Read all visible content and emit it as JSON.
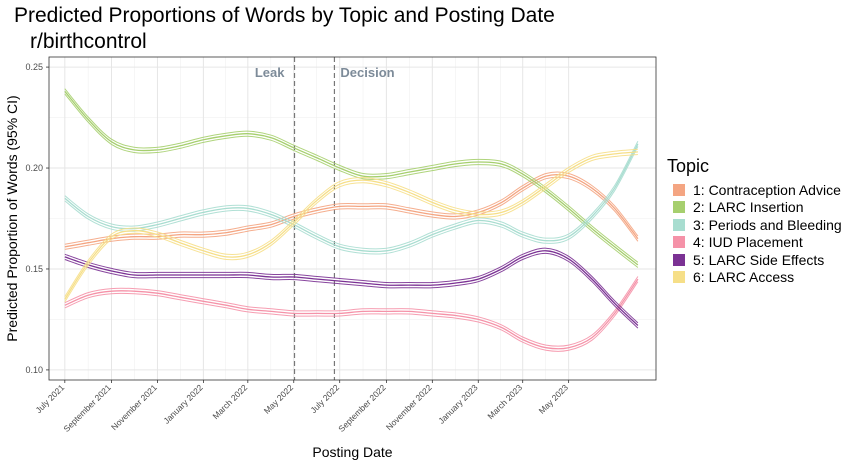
{
  "chart_data": {
    "type": "line",
    "title": "Predicted Proportions of Words by Topic and Posting Date",
    "subtitle": "r/birthcontrol",
    "xlabel": "Posting Date",
    "ylabel": "Predicted Proportion of Words (95% CI)",
    "xlim": [
      "2021-06-10",
      "2023-08-25"
    ],
    "ylim": [
      0.095,
      0.255
    ],
    "yticks": [
      0.1,
      0.15,
      0.2,
      0.25
    ],
    "ytick_labels": [
      "0.10",
      "0.15",
      "0.20",
      "0.25"
    ],
    "xticks": [
      "2021-07-01",
      "2021-09-01",
      "2021-11-01",
      "2022-01-01",
      "2022-03-01",
      "2022-05-01",
      "2022-07-01",
      "2022-09-01",
      "2022-11-01",
      "2023-01-01",
      "2023-03-01",
      "2023-05-01"
    ],
    "xtick_labels": [
      "July 2021",
      "September 2021",
      "November 2021",
      "January 2022",
      "March 2022",
      "May 2022",
      "July 2022",
      "September 2022",
      "November 2022",
      "January 2023",
      "March 2023",
      "May 2023"
    ],
    "grid": true,
    "legend_title": "Topic",
    "legend_position": "right",
    "annotations": [
      {
        "label": "Leak",
        "x": "2022-05-02"
      },
      {
        "label": "Decision",
        "x": "2022-06-24"
      }
    ],
    "x": [
      "2021-07-01",
      "2021-08-01",
      "2021-09-01",
      "2021-10-01",
      "2021-11-01",
      "2021-12-01",
      "2022-01-01",
      "2022-02-01",
      "2022-03-01",
      "2022-04-01",
      "2022-05-01",
      "2022-06-01",
      "2022-07-01",
      "2022-08-01",
      "2022-09-01",
      "2022-10-01",
      "2022-11-01",
      "2022-12-01",
      "2023-01-01",
      "2023-02-01",
      "2023-03-01",
      "2023-04-01",
      "2023-05-01",
      "2023-06-01",
      "2023-07-01",
      "2023-08-01"
    ],
    "series": [
      {
        "name": "1: Contraception Advice",
        "color": "#F4A582",
        "values": [
          0.161,
          0.163,
          0.165,
          0.166,
          0.166,
          0.167,
          0.167,
          0.168,
          0.17,
          0.172,
          0.176,
          0.179,
          0.181,
          0.181,
          0.181,
          0.179,
          0.177,
          0.176,
          0.178,
          0.183,
          0.19,
          0.196,
          0.196,
          0.19,
          0.18,
          0.165
        ]
      },
      {
        "name": "2: LARC Insertion",
        "color": "#A6CF6E",
        "values": [
          0.238,
          0.224,
          0.213,
          0.209,
          0.209,
          0.211,
          0.214,
          0.216,
          0.217,
          0.215,
          0.21,
          0.205,
          0.2,
          0.196,
          0.196,
          0.198,
          0.2,
          0.202,
          0.203,
          0.202,
          0.197,
          0.189,
          0.18,
          0.17,
          0.161,
          0.152
        ]
      },
      {
        "name": "3: Periods and Bleeding",
        "color": "#A8DDD0",
        "values": [
          0.185,
          0.176,
          0.171,
          0.17,
          0.172,
          0.175,
          0.178,
          0.18,
          0.18,
          0.177,
          0.172,
          0.166,
          0.161,
          0.159,
          0.159,
          0.162,
          0.167,
          0.171,
          0.174,
          0.172,
          0.167,
          0.164,
          0.166,
          0.176,
          0.19,
          0.212
        ]
      },
      {
        "name": "4: IUD Placement",
        "color": "#F592A8",
        "values": [
          0.132,
          0.137,
          0.139,
          0.139,
          0.138,
          0.136,
          0.134,
          0.132,
          0.13,
          0.129,
          0.128,
          0.128,
          0.128,
          0.129,
          0.129,
          0.129,
          0.128,
          0.127,
          0.125,
          0.121,
          0.115,
          0.111,
          0.111,
          0.116,
          0.128,
          0.145
        ]
      },
      {
        "name": "5: LARC Side Effects",
        "color": "#7B3294",
        "values": [
          0.156,
          0.152,
          0.149,
          0.147,
          0.147,
          0.147,
          0.147,
          0.147,
          0.147,
          0.146,
          0.146,
          0.145,
          0.144,
          0.143,
          0.142,
          0.142,
          0.142,
          0.143,
          0.145,
          0.15,
          0.156,
          0.159,
          0.155,
          0.145,
          0.133,
          0.122
        ]
      },
      {
        "name": "6: LARC Access",
        "color": "#F6DF88",
        "values": [
          0.135,
          0.153,
          0.166,
          0.169,
          0.167,
          0.163,
          0.159,
          0.156,
          0.157,
          0.163,
          0.173,
          0.184,
          0.192,
          0.194,
          0.192,
          0.188,
          0.183,
          0.179,
          0.177,
          0.178,
          0.183,
          0.191,
          0.199,
          0.205,
          0.207,
          0.208
        ]
      }
    ]
  }
}
